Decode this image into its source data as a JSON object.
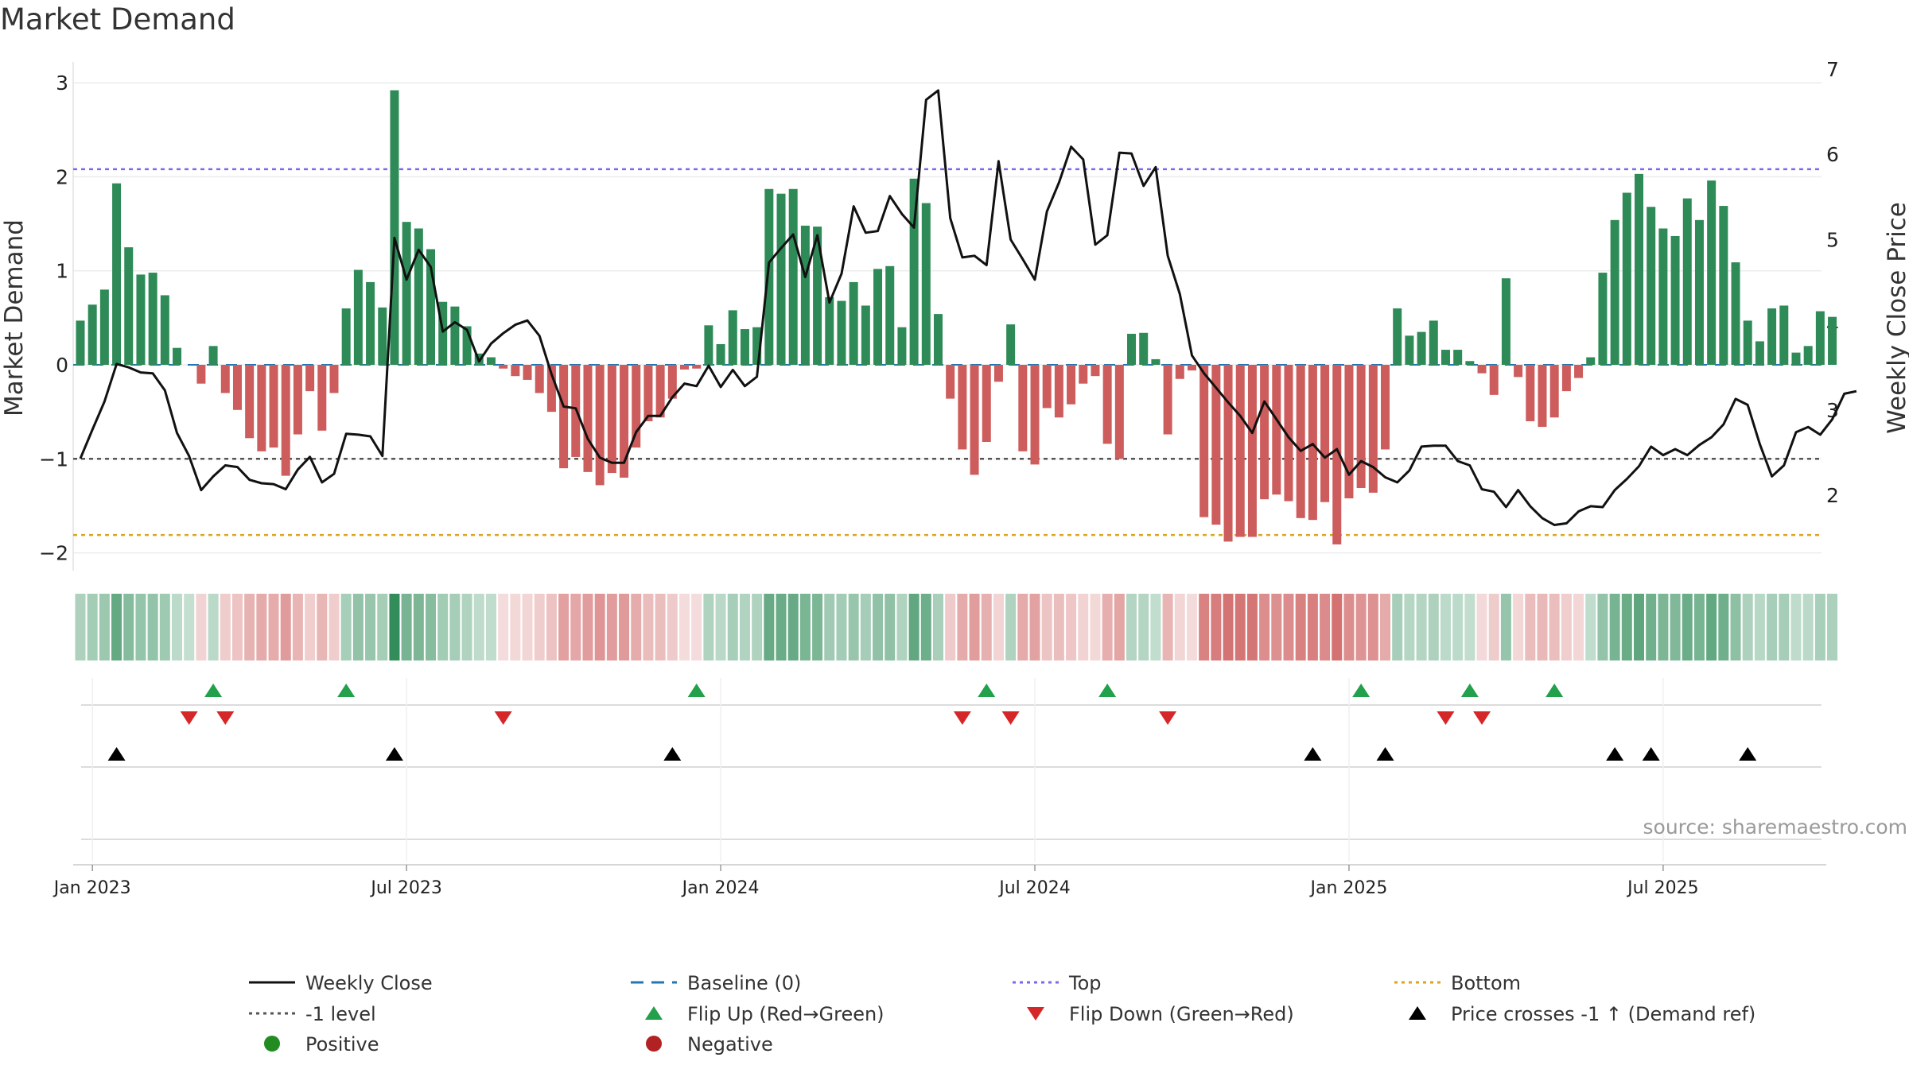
{
  "chart_data": {
    "type": "bar",
    "title": "Market Demand",
    "ylabel_left": "Market Demand",
    "ylabel_right": "Weekly Close Price",
    "ylim_left": [
      -2.2,
      3.2
    ],
    "ylim_right": [
      1.0,
      7.2
    ],
    "yticks_left": [
      "3",
      "2",
      "1",
      "0",
      "−1",
      "−2"
    ],
    "yticks_left_values": [
      3,
      2,
      1,
      0,
      -1,
      -2
    ],
    "yticks_right": [
      "7",
      "6",
      "5",
      "4",
      "3",
      "2"
    ],
    "yticks_right_values": [
      7,
      6,
      5,
      4,
      3,
      2
    ],
    "x_ticks": [
      {
        "label": "Jan 2023",
        "week": 1
      },
      {
        "label": "Jul 2023",
        "week": 27
      },
      {
        "label": "Jan 2024",
        "week": 53
      },
      {
        "label": "Jul 2024",
        "week": 79
      },
      {
        "label": "Jan 2025",
        "week": 105
      },
      {
        "label": "Jul 2025",
        "week": 131
      }
    ],
    "reference_lines": {
      "top": 2.08,
      "bottom": -1.81,
      "minus_one": -1,
      "baseline": 0
    },
    "demand": [
      0.47,
      0.64,
      0.8,
      1.93,
      1.25,
      0.96,
      0.98,
      0.74,
      0.18,
      0,
      -0.2,
      0.2,
      -0.3,
      -0.48,
      -0.78,
      -0.92,
      -0.88,
      -1.18,
      -0.74,
      -0.28,
      -0.7,
      -0.3,
      0.6,
      1.01,
      0.88,
      0.61,
      2.92,
      1.52,
      1.45,
      1.23,
      0.67,
      0.62,
      0.41,
      0.12,
      0.08,
      -0.04,
      -0.12,
      -0.16,
      -0.3,
      -0.5,
      -1.1,
      -0.98,
      -1.14,
      -1.28,
      -1.15,
      -1.2,
      -0.88,
      -0.6,
      -0.56,
      -0.36,
      -0.05,
      -0.04,
      0.42,
      0.22,
      0.58,
      0.38,
      0.4,
      1.87,
      1.82,
      1.87,
      1.48,
      1.47,
      0.72,
      0.68,
      0.88,
      0.63,
      1.02,
      1.05,
      0.4,
      1.98,
      1.72,
      0.54,
      -0.36,
      -0.9,
      -1.17,
      -0.82,
      -0.18,
      0.43,
      -0.92,
      -1.06,
      -0.46,
      -0.56,
      -0.42,
      -0.2,
      -0.12,
      -0.84,
      -1.0,
      0.33,
      0.34,
      0.06,
      -0.74,
      -0.15,
      -0.06,
      -1.62,
      -1.7,
      -1.88,
      -1.83,
      -1.83,
      -1.43,
      -1.38,
      -1.45,
      -1.63,
      -1.65,
      -1.46,
      -1.91,
      -1.42,
      -1.31,
      -1.36,
      -0.9,
      0.6,
      0.31,
      0.35,
      0.47,
      0.16,
      0.16,
      0.04,
      -0.09,
      -0.32,
      0.92,
      -0.13,
      -0.6,
      -0.66,
      -0.56,
      -0.28,
      -0.14,
      0.08,
      0.98,
      1.54,
      1.83,
      2.03,
      1.68,
      1.45,
      1.37,
      1.77,
      1.54,
      1.96,
      1.69,
      1.09,
      0.47,
      0.25,
      0.6,
      0.63,
      0.13,
      0.2,
      0.57,
      0.51
    ],
    "weekly_close": [
      2.43,
      2.77,
      3.1,
      3.54,
      3.5,
      3.44,
      3.43,
      3.23,
      2.73,
      2.46,
      2.06,
      2.22,
      2.35,
      2.33,
      2.18,
      2.14,
      2.13,
      2.07,
      2.3,
      2.45,
      2.15,
      2.25,
      2.72,
      2.71,
      2.69,
      2.46,
      5.02,
      4.53,
      4.88,
      4.68,
      3.92,
      4.03,
      3.94,
      3.57,
      3.78,
      3.9,
      4.0,
      4.05,
      3.87,
      3.42,
      3.04,
      3.02,
      2.66,
      2.44,
      2.38,
      2.38,
      2.74,
      2.93,
      2.93,
      3.15,
      3.31,
      3.28,
      3.52,
      3.27,
      3.47,
      3.28,
      3.39,
      4.73,
      4.9,
      5.06,
      4.56,
      5.05,
      4.26,
      4.6,
      5.39,
      5.08,
      5.1,
      5.51,
      5.3,
      5.14,
      6.64,
      6.75,
      5.25,
      4.79,
      4.81,
      4.7,
      5.92,
      5.0,
      4.77,
      4.53,
      5.33,
      5.67,
      6.09,
      5.94,
      4.94,
      5.05,
      6.02,
      6.01,
      5.63,
      5.85,
      4.81,
      4.36,
      3.64,
      3.43,
      3.26,
      3.09,
      2.93,
      2.73,
      3.1,
      2.89,
      2.68,
      2.52,
      2.6,
      2.44,
      2.54,
      2.24,
      2.4,
      2.33,
      2.21,
      2.15,
      2.29,
      2.57,
      2.58,
      2.58,
      2.4,
      2.35,
      2.07,
      2.04,
      1.86,
      2.06,
      1.87,
      1.73,
      1.65,
      1.67,
      1.81,
      1.87,
      1.86,
      2.06,
      2.19,
      2.34,
      2.57,
      2.47,
      2.54,
      2.47,
      2.59,
      2.68,
      2.83,
      3.13,
      3.06,
      2.6,
      2.22,
      2.35,
      2.74,
      2.8,
      2.71,
      2.89,
      3.19,
      3.22
    ],
    "flip_up_weeks": [
      11,
      22,
      51,
      75,
      85,
      106,
      115,
      122
    ],
    "flip_down_weeks": [
      9,
      12,
      35,
      73,
      77,
      90,
      113,
      116
    ],
    "price_cross_weeks": [
      3,
      26,
      49,
      102,
      108,
      127,
      130,
      138
    ],
    "source": "source: sharemaestro.com"
  },
  "legend": {
    "weekly_close": "Weekly Close",
    "baseline": "Baseline (0)",
    "top": "Top",
    "bottom": "Bottom",
    "minus_one": "-1 level",
    "flip_up": "Flip Up (Red→Green)",
    "flip_down": "Flip Down (Green→Red)",
    "price_cross": "Price crosses -1 ↑ (Demand ref)",
    "positive": "Positive",
    "negative": "Negative"
  },
  "colors": {
    "positive_bar": "#2e8b57",
    "negative_bar": "#cd5c5c",
    "line": "#111111",
    "top": "#7b68ee",
    "bottom": "#daa520",
    "minus_one": "#555555",
    "baseline": "#1f77b4",
    "flip_up": "#22a04b",
    "flip_down": "#d62728",
    "cross": "#000000",
    "positive_dot": "#228b22",
    "negative_dot": "#b22222"
  }
}
